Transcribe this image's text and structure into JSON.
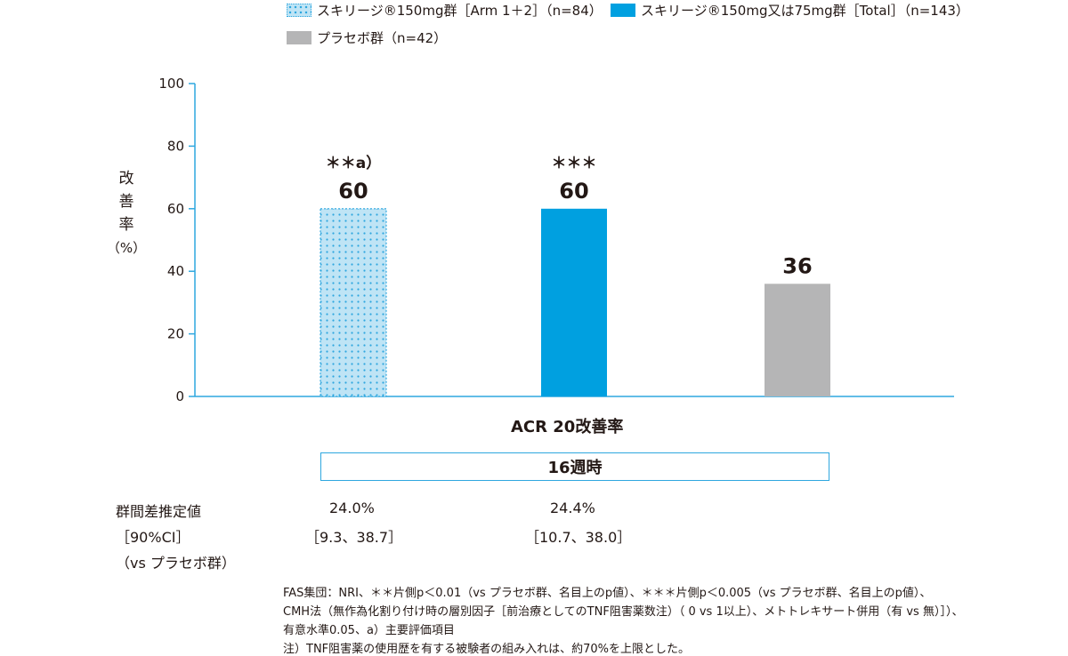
{
  "legend": [
    {
      "label": "スキリージ®150mg群［Arm 1＋2］（n=84）",
      "style": "dotted-blue"
    },
    {
      "label": "スキリージ®150mg又は75mg群［Total］（n=143）",
      "style": "solid-blue"
    },
    {
      "label": "プラセボ群（n=42）",
      "style": "gray"
    }
  ],
  "colors": {
    "dotted_fill": "#bfe4f5",
    "dotted_dot": "#2ea7df",
    "solid_blue": "#00a0e0",
    "gray": "#b5b5b6",
    "axis": "#2ea7df"
  },
  "y_axis": {
    "label_lines": [
      "改",
      "善",
      "率",
      "（%）"
    ],
    "ticks": [
      "100",
      "80",
      "60",
      "40",
      "20",
      "0"
    ]
  },
  "subtitle": "ACR 20改善率",
  "week_label": "16週時",
  "stats": {
    "row_labels": [
      "群間差推定値",
      "［90%CI］",
      "（vs プラセボ群）"
    ],
    "arm12_diff": "24.0%",
    "arm12_ci": "［9.3、38.7］",
    "total_diff": "24.4%",
    "total_ci": "［10.7、38.0］"
  },
  "footnotes": [
    "FAS集団：NRI、＊＊片側p＜0.01（vs プラセボ群、名目上のp値）、＊＊＊片側p＜0.005（vs プラセボ群、名目上のp値）、",
    "CMH法（無作為化割り付け時の層別因子［前治療としてのTNF阻害薬数注）（ 0 vs 1以上）、メトトレキサート併用（有 vs 無）］）、",
    "有意水準0.05、a）主要評価項目",
    "注）TNF阻害薬の使用歴を有する被験者の組み入れは、約70%を上限とした。"
  ],
  "chart_data": {
    "type": "bar",
    "categories": [
      "スキリージ®150mg群［Arm 1＋2］（n=84）",
      "スキリージ®150mg又は75mg群［Total］（n=143）",
      "プラセボ群（n=42）"
    ],
    "values": [
      60,
      60,
      36
    ],
    "data_labels": [
      "60",
      "60",
      "36"
    ],
    "significance": [
      "＊＊a）",
      "＊＊＊",
      ""
    ],
    "xlabel": "ACR 20改善率",
    "ylabel": "改善率（%）",
    "ylim": [
      0,
      100
    ],
    "yticks": [
      0,
      20,
      40,
      60,
      80,
      100
    ],
    "grid": false,
    "legend_position": "top"
  }
}
